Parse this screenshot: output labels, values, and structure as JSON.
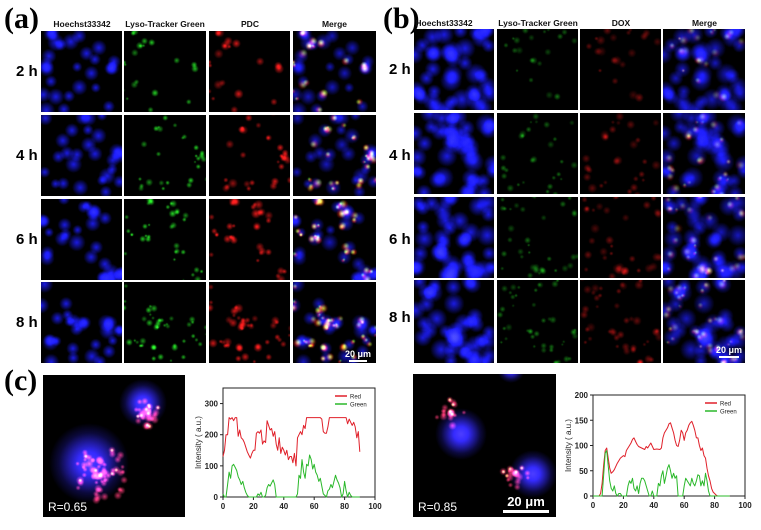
{
  "panel_a": {
    "label": "(a)",
    "columns": [
      "Hoechst33342",
      "Lyso-Tracker Green",
      "PDC",
      "Merge"
    ],
    "rows": [
      "2 h",
      "4 h",
      "6 h",
      "8 h"
    ],
    "scalebar": "20 μm"
  },
  "panel_b": {
    "label": "(b)",
    "columns": [
      "Hoechst33342",
      "Lyso-Tracker Green",
      "DOX",
      "Merge"
    ],
    "rows": [
      "2 h",
      "4 h",
      "6 h",
      "8 h"
    ],
    "scalebar": "20 μm"
  },
  "panel_c": {
    "label": "(c)",
    "left_image": {
      "r_value": "R=0.65"
    },
    "right_image": {
      "r_value": "R=0.85",
      "scalebar": "20 μm"
    }
  },
  "colors": {
    "blue": "#1a1aff",
    "green": "#22dd22",
    "red": "#ff2020",
    "red_line": "#e0202a",
    "green_line": "#2ab82a"
  },
  "chart_data": [
    {
      "type": "line",
      "title": "",
      "xlabel": "",
      "ylabel": "Intensity ( a.u.)",
      "xlim": [
        0,
        100
      ],
      "ylim": [
        0,
        350
      ],
      "xticks": [
        0,
        20,
        40,
        60,
        80,
        100
      ],
      "yticks": [
        0,
        100,
        200,
        300
      ],
      "legend_position": "top-right",
      "grid": false,
      "series": [
        {
          "name": "Red",
          "color": "#e0202a",
          "x": [
            0,
            1,
            2,
            3,
            4,
            5,
            6,
            7,
            8,
            9,
            10,
            11,
            12,
            13,
            14,
            15,
            16,
            17,
            18,
            19,
            20,
            21,
            22,
            23,
            24,
            25,
            26,
            27,
            28,
            29,
            30,
            31,
            32,
            33,
            34,
            35,
            36,
            37,
            38,
            39,
            40,
            41,
            42,
            43,
            44,
            45,
            46,
            47,
            48,
            49,
            50,
            51,
            52,
            53,
            54,
            55,
            56,
            57,
            58,
            59,
            60,
            61,
            62,
            63,
            64,
            65,
            66,
            67,
            68,
            69,
            70,
            71,
            72,
            73,
            74,
            75,
            76,
            77,
            78,
            79,
            80,
            81,
            82,
            83,
            84,
            85,
            86,
            87,
            88,
            89,
            90
          ],
          "y": [
            130,
            150,
            200,
            200,
            255,
            250,
            255,
            245,
            255,
            255,
            195,
            215,
            190,
            185,
            175,
            160,
            145,
            135,
            125,
            140,
            150,
            150,
            205,
            210,
            205,
            215,
            170,
            180,
            175,
            245,
            230,
            215,
            220,
            195,
            210,
            170,
            150,
            190,
            140,
            160,
            150,
            135,
            150,
            120,
            130,
            130,
            110,
            140,
            100,
            190,
            200,
            210,
            200,
            230,
            220,
            255,
            255,
            255,
            255,
            255,
            255,
            255,
            255,
            255,
            255,
            250,
            210,
            205,
            205,
            225,
            255,
            255,
            255,
            255,
            255,
            255,
            255,
            255,
            255,
            255,
            255,
            255,
            235,
            250,
            240,
            230,
            240,
            225,
            190,
            210,
            145
          ]
        },
        {
          "name": "Green",
          "color": "#2ab82a",
          "x": [
            0,
            1,
            2,
            3,
            4,
            5,
            6,
            7,
            8,
            9,
            10,
            11,
            12,
            13,
            14,
            15,
            16,
            17,
            18,
            19,
            20,
            21,
            22,
            23,
            24,
            25,
            26,
            27,
            28,
            29,
            30,
            31,
            32,
            33,
            34,
            35,
            36,
            37,
            38,
            39,
            40,
            41,
            42,
            43,
            44,
            45,
            46,
            47,
            48,
            49,
            50,
            51,
            52,
            53,
            54,
            55,
            56,
            57,
            58,
            59,
            60,
            61,
            62,
            63,
            64,
            65,
            66,
            67,
            68,
            69,
            70,
            71,
            72,
            73,
            74,
            75,
            76,
            77,
            78,
            79,
            80,
            81,
            82,
            83,
            84,
            85,
            86,
            87,
            88,
            89,
            90
          ],
          "y": [
            10,
            0,
            0,
            40,
            80,
            60,
            100,
            105,
            95,
            85,
            65,
            55,
            40,
            50,
            30,
            15,
            5,
            0,
            0,
            0,
            0,
            0,
            0,
            10,
            5,
            15,
            0,
            0,
            5,
            30,
            40,
            35,
            45,
            55,
            40,
            0,
            0,
            0,
            0,
            0,
            0,
            0,
            0,
            0,
            0,
            0,
            0,
            0,
            0,
            10,
            70,
            60,
            120,
            80,
            60,
            105,
            100,
            135,
            120,
            90,
            105,
            80,
            70,
            50,
            60,
            35,
            10,
            5,
            0,
            20,
            25,
            40,
            30,
            50,
            70,
            55,
            45,
            30,
            0,
            10,
            50,
            20,
            0,
            15,
            5,
            0,
            0,
            0,
            0,
            0,
            0
          ]
        }
      ]
    },
    {
      "type": "line",
      "title": "",
      "xlabel": "",
      "ylabel": "Intensity ( a.u.)",
      "xlim": [
        0,
        100
      ],
      "ylim": [
        0,
        200
      ],
      "xticks": [
        0,
        20,
        40,
        60,
        80,
        100
      ],
      "yticks": [
        0,
        50,
        100,
        150,
        200
      ],
      "legend_position": "top-right",
      "grid": false,
      "series": [
        {
          "name": "Red",
          "color": "#e0202a",
          "x": [
            0,
            2,
            4,
            5,
            6,
            7,
            8,
            9,
            10,
            11,
            12,
            13,
            14,
            16,
            18,
            20,
            21,
            22,
            24,
            25,
            26,
            27,
            28,
            29,
            30,
            32,
            34,
            35,
            36,
            37,
            38,
            40,
            42,
            44,
            45,
            46,
            47,
            48,
            49,
            50,
            51,
            52,
            53,
            54,
            55,
            56,
            57,
            58,
            59,
            60,
            61,
            62,
            63,
            64,
            65,
            66,
            67,
            68,
            69,
            70,
            71,
            72,
            73,
            74,
            75,
            76,
            77,
            78,
            79,
            80,
            81,
            82,
            84,
            86,
            90
          ],
          "y": [
            0,
            0,
            0,
            5,
            25,
            60,
            90,
            95,
            75,
            55,
            45,
            48,
            52,
            65,
            75,
            80,
            78,
            90,
            100,
            105,
            112,
            115,
            108,
            102,
            98,
            95,
            92,
            98,
            95,
            100,
            105,
            92,
            93,
            92,
            95,
            115,
            125,
            130,
            135,
            143,
            145,
            135,
            125,
            110,
            100,
            98,
            110,
            130,
            125,
            110,
            125,
            130,
            140,
            145,
            148,
            140,
            130,
            115,
            115,
            100,
            90,
            95,
            80,
            75,
            55,
            40,
            30,
            15,
            8,
            5,
            2,
            0,
            0,
            0,
            0
          ]
        },
        {
          "name": "Green",
          "color": "#2ab82a",
          "x": [
            0,
            2,
            4,
            5,
            6,
            7,
            8,
            9,
            10,
            11,
            12,
            13,
            14,
            15,
            16,
            17,
            18,
            19,
            20,
            21,
            22,
            23,
            24,
            25,
            26,
            27,
            28,
            29,
            30,
            31,
            32,
            33,
            34,
            35,
            36,
            37,
            38,
            39,
            40,
            41,
            42,
            43,
            44,
            45,
            46,
            47,
            48,
            49,
            50,
            51,
            52,
            53,
            54,
            55,
            56,
            57,
            58,
            59,
            60,
            61,
            62,
            63,
            64,
            65,
            66,
            67,
            68,
            69,
            70,
            71,
            72,
            73,
            74,
            75,
            76,
            77,
            78,
            80,
            84,
            90
          ],
          "y": [
            0,
            0,
            0,
            0,
            0,
            40,
            85,
            90,
            60,
            30,
            15,
            10,
            20,
            5,
            0,
            5,
            5,
            0,
            0,
            0,
            0,
            20,
            30,
            25,
            35,
            15,
            10,
            20,
            5,
            25,
            35,
            35,
            30,
            20,
            10,
            0,
            0,
            10,
            0,
            0,
            0,
            25,
            20,
            40,
            50,
            25,
            40,
            55,
            62,
            50,
            35,
            45,
            35,
            40,
            0,
            0,
            0,
            0,
            20,
            35,
            30,
            25,
            20,
            35,
            25,
            20,
            30,
            42,
            40,
            20,
            30,
            20,
            45,
            30,
            10,
            0,
            0,
            0,
            0,
            0
          ]
        }
      ]
    }
  ]
}
